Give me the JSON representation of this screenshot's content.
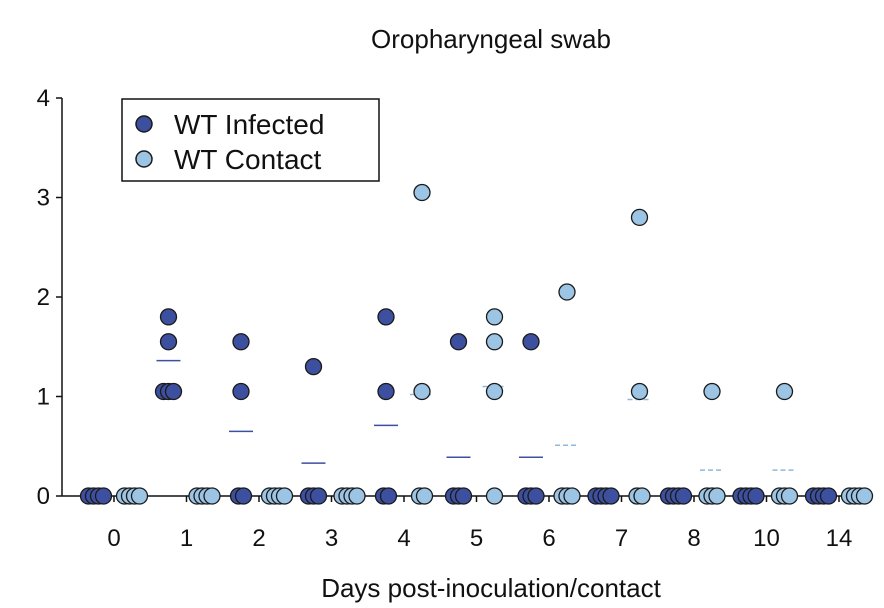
{
  "chart_data": {
    "type": "scatter",
    "title": "Oropharyngeal swab",
    "xlabel": "Days post-inoculation/contact",
    "ylabel": "",
    "ylim": [
      0,
      4
    ],
    "yticks": [
      "0",
      "1",
      "2",
      "3",
      "4"
    ],
    "categories": [
      "0",
      "1",
      "2",
      "3",
      "4",
      "5",
      "6",
      "7",
      "8",
      "10",
      "14"
    ],
    "legend": {
      "position": "top-left"
    },
    "colors": {
      "infected": "#3d4f9f",
      "contact": "#9cc4e4",
      "stroke": "#1a1a1a",
      "infected_mean": "#3d4f9f",
      "contact_mean": "#8fb8de"
    },
    "series": [
      {
        "name": "WT Infected",
        "key": "infected",
        "points": [
          [
            0,
            0
          ],
          [
            0,
            0
          ],
          [
            0,
            0
          ],
          [
            0,
            0
          ],
          [
            1,
            1.8
          ],
          [
            1,
            1.55
          ],
          [
            1,
            1.05
          ],
          [
            1,
            1.05
          ],
          [
            1,
            1.05
          ],
          [
            2,
            1.55
          ],
          [
            2,
            1.05
          ],
          [
            2,
            0
          ],
          [
            2,
            0
          ],
          [
            3,
            1.3
          ],
          [
            3,
            0
          ],
          [
            3,
            0
          ],
          [
            3,
            0
          ],
          [
            4,
            1.8
          ],
          [
            4,
            1.05
          ],
          [
            4,
            0
          ],
          [
            4,
            0
          ],
          [
            5,
            1.55
          ],
          [
            5,
            0
          ],
          [
            5,
            0
          ],
          [
            5,
            0
          ],
          [
            6,
            1.55
          ],
          [
            6,
            0
          ],
          [
            6,
            0
          ],
          [
            6,
            0
          ],
          [
            7,
            0
          ],
          [
            7,
            0
          ],
          [
            7,
            0
          ],
          [
            7,
            0
          ],
          [
            8,
            0
          ],
          [
            8,
            0
          ],
          [
            8,
            0
          ],
          [
            8,
            0
          ],
          [
            9,
            0
          ],
          [
            9,
            0
          ],
          [
            9,
            0
          ],
          [
            9,
            0
          ],
          [
            10,
            0
          ],
          [
            10,
            0
          ],
          [
            10,
            0
          ],
          [
            10,
            0
          ]
        ],
        "means": [
          0,
          1.36,
          0.65,
          0.33,
          0.71,
          0.39,
          0.39,
          0,
          0,
          0,
          0
        ]
      },
      {
        "name": "WT Contact",
        "key": "contact",
        "points": [
          [
            0,
            0
          ],
          [
            0,
            0
          ],
          [
            0,
            0
          ],
          [
            0,
            0
          ],
          [
            1,
            0
          ],
          [
            1,
            0
          ],
          [
            1,
            0
          ],
          [
            1,
            0
          ],
          [
            2,
            0
          ],
          [
            2,
            0
          ],
          [
            2,
            0
          ],
          [
            2,
            0
          ],
          [
            3,
            0
          ],
          [
            3,
            0
          ],
          [
            3,
            0
          ],
          [
            3,
            0
          ],
          [
            4,
            3.05
          ],
          [
            4,
            1.05
          ],
          [
            4,
            0
          ],
          [
            4,
            0
          ],
          [
            5,
            1.8
          ],
          [
            5,
            1.55
          ],
          [
            5,
            1.05
          ],
          [
            5,
            0
          ],
          [
            6,
            2.05
          ],
          [
            6,
            0
          ],
          [
            6,
            0
          ],
          [
            6,
            0
          ],
          [
            7,
            2.8
          ],
          [
            7,
            1.05
          ],
          [
            7,
            0
          ],
          [
            7,
            0
          ],
          [
            8,
            1.05
          ],
          [
            8,
            0
          ],
          [
            8,
            0
          ],
          [
            8,
            0
          ],
          [
            9,
            1.05
          ],
          [
            9,
            0
          ],
          [
            9,
            0
          ],
          [
            9,
            0
          ],
          [
            10,
            0
          ],
          [
            10,
            0
          ],
          [
            10,
            0
          ],
          [
            10,
            0
          ]
        ],
        "means": [
          0,
          0,
          0,
          0,
          1.02,
          1.1,
          0.51,
          0.97,
          0.26,
          0.26,
          0
        ]
      }
    ]
  }
}
